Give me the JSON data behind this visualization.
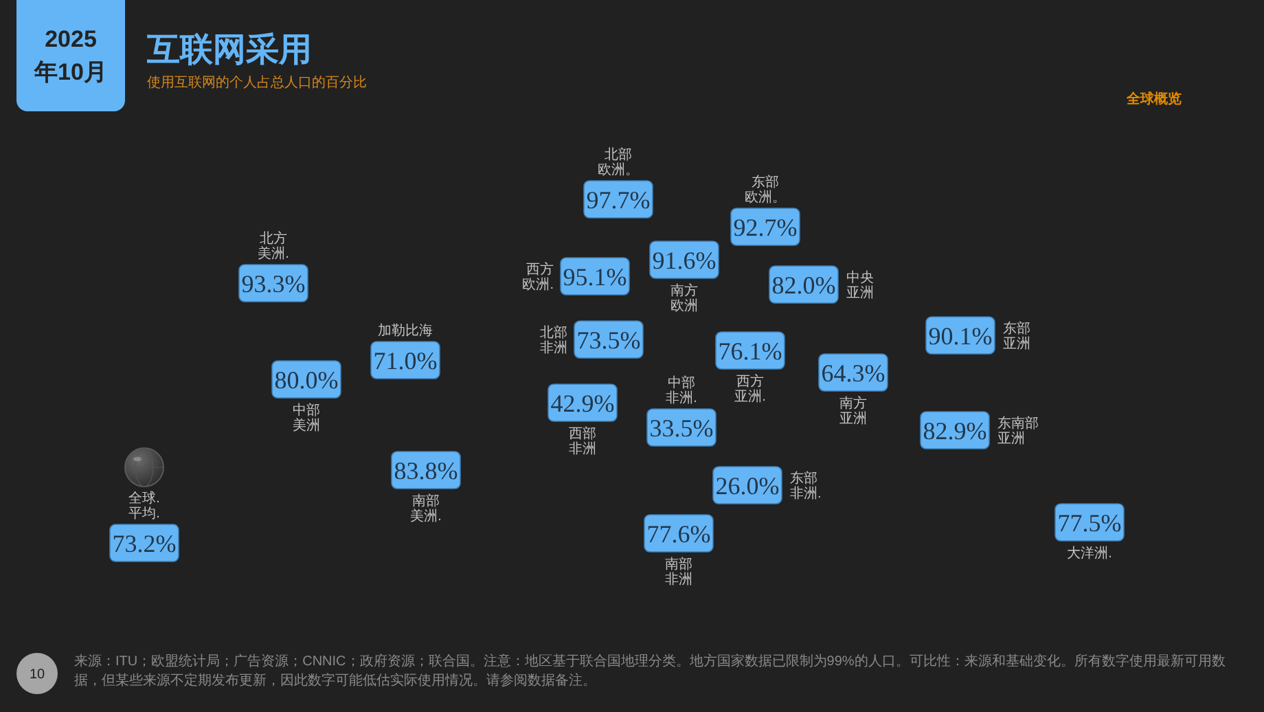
{
  "chart_data": {
    "type": "other",
    "title": "互联网采用",
    "subtitle": "使用互联网的个人占总人口的百分比",
    "categories": [
      "北方美洲.",
      "加勒比海",
      "中部美洲",
      "南部美洲.",
      "北部欧洲。",
      "东部欧洲。",
      "西方欧洲.",
      "南方欧洲",
      "中央亚洲",
      "北部非洲",
      "西方亚洲.",
      "南方亚洲",
      "西部非洲",
      "中部非洲.",
      "东部非洲.",
      "南部非洲",
      "东部亚洲",
      "东南部亚洲",
      "大洋洲.",
      "全球.平均."
    ],
    "values": [
      93.3,
      71.0,
      80.0,
      83.8,
      97.7,
      92.7,
      95.1,
      91.6,
      82.0,
      73.5,
      76.1,
      64.3,
      42.9,
      33.5,
      26.0,
      77.6,
      90.1,
      82.9,
      77.5,
      73.2
    ],
    "value_labels": [
      "93.3%",
      "71.0%",
      "80.0%",
      "83.8%",
      "97.7%",
      "92.7%",
      "95.1%",
      "91.6%",
      "82.0%",
      "73.5%",
      "76.1%",
      "64.3%",
      "42.9%",
      "33.5%",
      "26.0%",
      "77.6%",
      "90.1%",
      "82.9%",
      "77.5%",
      "73.2%"
    ],
    "color": "#64b5f6",
    "annotations": [
      "2025",
      "年10月",
      "全球概览",
      "10",
      "来源：ITU；欧盟统计局；广告资源；CNNIC；政府资源；联合国。注意：地区基于联合国地理分类。地方国家数据已限制为99%的人口。可比性：来源和基础变化。所有数字使用最新可用数据，但某些来源不定期发布更新，因此数字可能低估实际使用情况。请参阅数据备注。"
    ]
  }
}
